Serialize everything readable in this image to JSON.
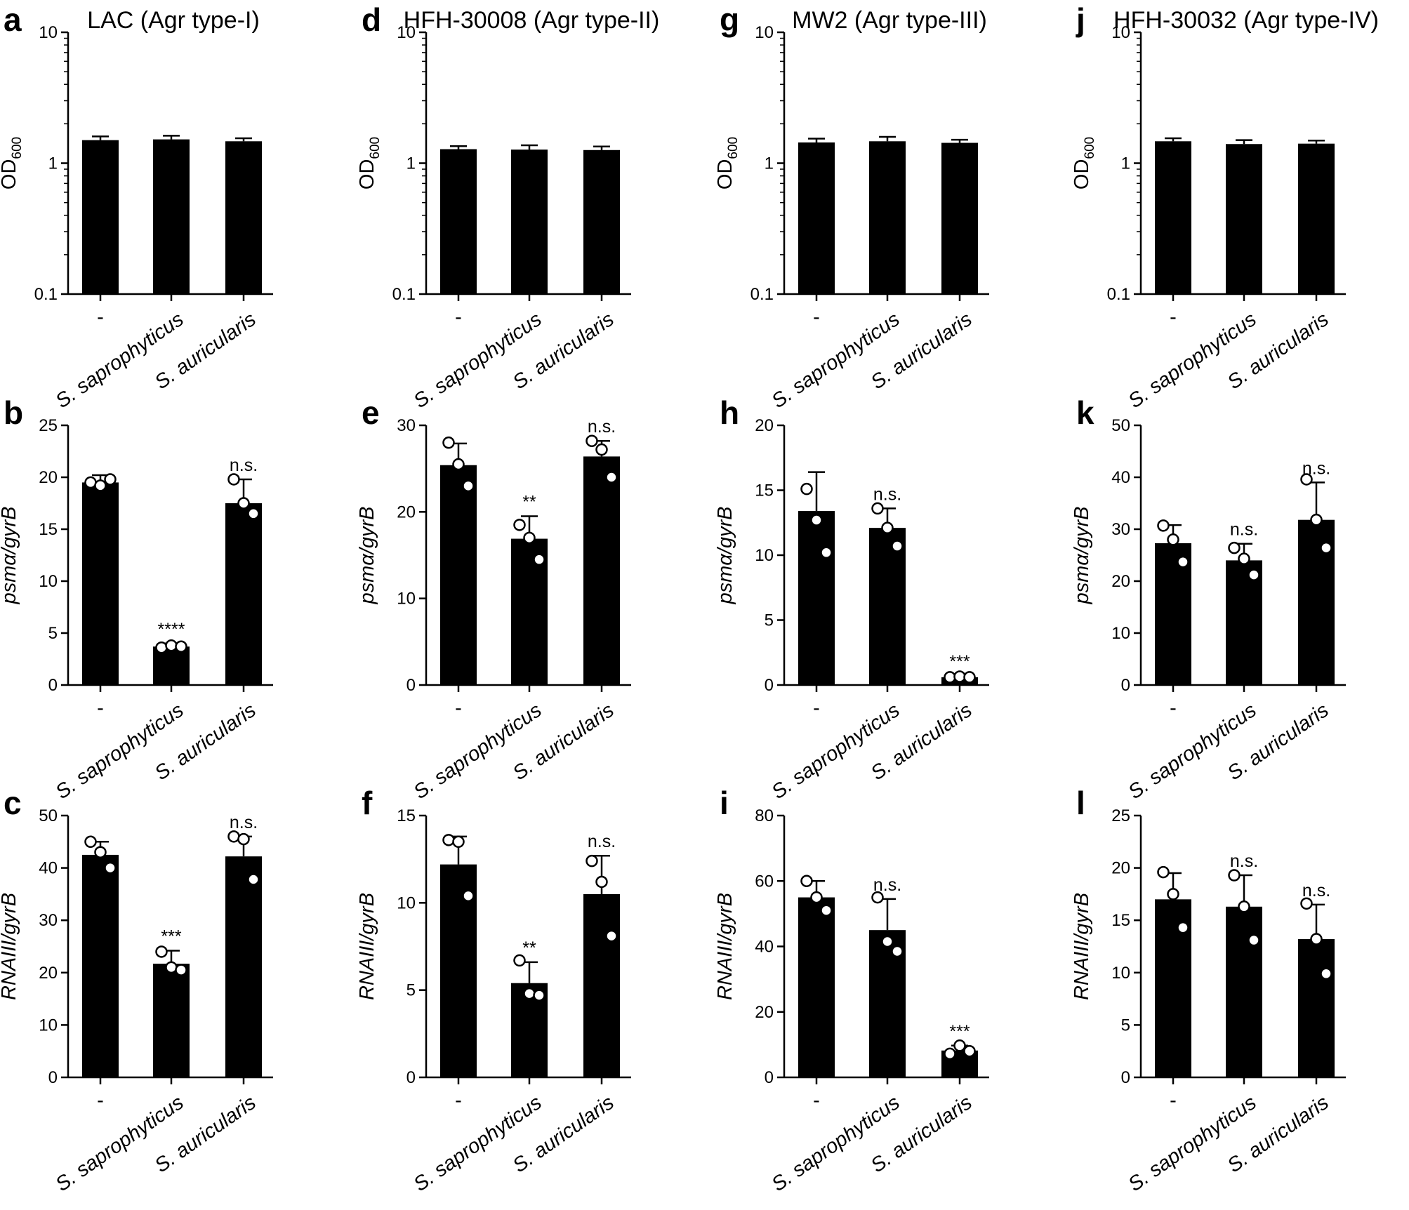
{
  "colors": {
    "bar": "#000000",
    "axis": "#000000",
    "point_fill": "#ffffff",
    "point_stroke": "#000000"
  },
  "chart_data": [
    {
      "panel": "a",
      "type": "bar",
      "title": "LAC (Agr type-I)",
      "ylabel": "OD",
      "ylabel_sub": "600",
      "scale": "log",
      "ylim": [
        0.1,
        10
      ],
      "yticks": [
        0.1,
        1,
        10
      ],
      "ytick_labels": [
        "0.1",
        "1",
        "10"
      ],
      "categories": [
        "-",
        "S. saprophyticus",
        "S. auricularis"
      ],
      "values": [
        1.5,
        1.52,
        1.47
      ],
      "errors": [
        0.1,
        0.1,
        0.08
      ],
      "points": [],
      "significance": [
        "",
        "",
        ""
      ]
    },
    {
      "panel": "b",
      "type": "bar",
      "title": "",
      "ylabel": "psmα/gyrB",
      "ylabel_sub": "",
      "scale": "linear",
      "ylim": [
        0,
        25
      ],
      "yticks": [
        0,
        5,
        10,
        15,
        20,
        25
      ],
      "ytick_labels": [
        "0",
        "5",
        "10",
        "15",
        "20",
        "25"
      ],
      "categories": [
        "-",
        "S. saprophyticus",
        "S. auricularis"
      ],
      "values": [
        19.5,
        3.7,
        17.5
      ],
      "errors": [
        0.7,
        0.3,
        2.3
      ],
      "points": [
        [
          19.5,
          19.2,
          19.8
        ],
        [
          3.6,
          3.8,
          3.7
        ],
        [
          19.8,
          17.5,
          16.5
        ]
      ],
      "significance": [
        "",
        "****",
        "n.s."
      ]
    },
    {
      "panel": "c",
      "type": "bar",
      "title": "",
      "ylabel": "RNAIII/gyrB",
      "ylabel_sub": "",
      "scale": "linear",
      "ylim": [
        0,
        50
      ],
      "yticks": [
        0,
        10,
        20,
        30,
        40,
        50
      ],
      "ytick_labels": [
        "0",
        "10",
        "20",
        "30",
        "40",
        "50"
      ],
      "categories": [
        "-",
        "S. saprophyticus",
        "S. auricularis"
      ],
      "values": [
        42.5,
        21.7,
        42.2
      ],
      "errors": [
        2.5,
        2.5,
        3.8
      ],
      "points": [
        [
          45,
          43,
          40
        ],
        [
          24,
          21,
          20.5
        ],
        [
          46,
          45.5,
          37.8
        ]
      ],
      "significance": [
        "",
        "***",
        "n.s."
      ]
    },
    {
      "panel": "d",
      "type": "bar",
      "title": "HFH-30008 (Agr type-II)",
      "ylabel": "OD",
      "ylabel_sub": "600",
      "scale": "log",
      "ylim": [
        0.1,
        10
      ],
      "yticks": [
        0.1,
        1,
        10
      ],
      "ytick_labels": [
        "0.1",
        "1",
        "10"
      ],
      "categories": [
        "-",
        "S. saprophyticus",
        "S. auricularis"
      ],
      "values": [
        1.28,
        1.27,
        1.26
      ],
      "errors": [
        0.07,
        0.1,
        0.08
      ],
      "points": [],
      "significance": [
        "",
        "",
        ""
      ]
    },
    {
      "panel": "e",
      "type": "bar",
      "title": "",
      "ylabel": "psmα/gyrB",
      "ylabel_sub": "",
      "scale": "linear",
      "ylim": [
        0,
        30
      ],
      "yticks": [
        0,
        10,
        20,
        30
      ],
      "ytick_labels": [
        "0",
        "10",
        "20",
        "30"
      ],
      "categories": [
        "-",
        "S. saprophyticus",
        "S. auricularis"
      ],
      "values": [
        25.4,
        16.9,
        26.4
      ],
      "errors": [
        2.5,
        2.6,
        1.8
      ],
      "points": [
        [
          28,
          25.5,
          23
        ],
        [
          18.5,
          17,
          14.5
        ],
        [
          28.2,
          27.2,
          24
        ]
      ],
      "significance": [
        "",
        "**",
        "n.s."
      ]
    },
    {
      "panel": "f",
      "type": "bar",
      "title": "",
      "ylabel": "RNAIII/gyrB",
      "ylabel_sub": "",
      "scale": "linear",
      "ylim": [
        0,
        15
      ],
      "yticks": [
        0,
        5,
        10,
        15
      ],
      "ytick_labels": [
        "0",
        "5",
        "10",
        "15"
      ],
      "categories": [
        "-",
        "S. saprophyticus",
        "S. auricularis"
      ],
      "values": [
        12.2,
        5.4,
        10.5
      ],
      "errors": [
        1.6,
        1.2,
        2.2
      ],
      "points": [
        [
          13.6,
          13.5,
          10.4
        ],
        [
          6.7,
          4.8,
          4.7
        ],
        [
          12.4,
          11.2,
          8.1
        ]
      ],
      "significance": [
        "",
        "**",
        "n.s."
      ]
    },
    {
      "panel": "g",
      "type": "bar",
      "title": "MW2 (Agr type-III)",
      "ylabel": "OD",
      "ylabel_sub": "600",
      "scale": "log",
      "ylim": [
        0.1,
        10
      ],
      "yticks": [
        0.1,
        1,
        10
      ],
      "ytick_labels": [
        "0.1",
        "1",
        "10"
      ],
      "categories": [
        "-",
        "S. saprophyticus",
        "S. auricularis"
      ],
      "values": [
        1.44,
        1.47,
        1.43
      ],
      "errors": [
        0.1,
        0.12,
        0.08
      ],
      "points": [],
      "significance": [
        "",
        "",
        ""
      ]
    },
    {
      "panel": "h",
      "type": "bar",
      "title": "",
      "ylabel": "psmα/gyrB",
      "ylabel_sub": "",
      "scale": "linear",
      "ylim": [
        0,
        20
      ],
      "yticks": [
        0,
        5,
        10,
        15,
        20
      ],
      "ytick_labels": [
        "0",
        "5",
        "10",
        "15",
        "20"
      ],
      "categories": [
        "-",
        "S. saprophyticus",
        "S. auricularis"
      ],
      "values": [
        13.4,
        12.1,
        0.6
      ],
      "errors": [
        3,
        1.5,
        0.1
      ],
      "points": [
        [
          15.1,
          12.7,
          10.2
        ],
        [
          13.6,
          12.1,
          10.7
        ],
        [
          0.6,
          0.65,
          0.6
        ]
      ],
      "significance": [
        "",
        "n.s.",
        "***"
      ]
    },
    {
      "panel": "i",
      "type": "bar",
      "title": "",
      "ylabel": "RNAIII/gyrB",
      "ylabel_sub": "",
      "scale": "linear",
      "ylim": [
        0,
        80
      ],
      "yticks": [
        0,
        20,
        40,
        60,
        80
      ],
      "ytick_labels": [
        "0",
        "20",
        "40",
        "60",
        "80"
      ],
      "categories": [
        "-",
        "S. saprophyticus",
        "S. auricularis"
      ],
      "values": [
        55,
        45,
        8.2
      ],
      "errors": [
        5,
        9.5,
        1.5
      ],
      "points": [
        [
          60,
          55,
          51
        ],
        [
          55,
          41.5,
          38.5
        ],
        [
          7.2,
          9.7,
          8
        ]
      ],
      "significance": [
        "",
        "n.s.",
        "***"
      ]
    },
    {
      "panel": "j",
      "type": "bar",
      "title": "HFH-30032 (Agr type-IV)",
      "ylabel": "OD",
      "ylabel_sub": "600",
      "scale": "log",
      "ylim": [
        0.1,
        10
      ],
      "yticks": [
        0.1,
        1,
        10
      ],
      "ytick_labels": [
        "0.1",
        "1",
        "10"
      ],
      "categories": [
        "-",
        "S. saprophyticus",
        "S. auricularis"
      ],
      "values": [
        1.47,
        1.4,
        1.41
      ],
      "errors": [
        0.08,
        0.1,
        0.08
      ],
      "points": [],
      "significance": [
        "",
        "",
        ""
      ]
    },
    {
      "panel": "k",
      "type": "bar",
      "title": "",
      "ylabel": "psmα/gyrB",
      "ylabel_sub": "",
      "scale": "linear",
      "ylim": [
        0,
        50
      ],
      "yticks": [
        0,
        10,
        20,
        30,
        40,
        50
      ],
      "ytick_labels": [
        "0",
        "10",
        "20",
        "30",
        "40",
        "50"
      ],
      "categories": [
        "-",
        "S. saprophyticus",
        "S. auricularis"
      ],
      "values": [
        27.3,
        24,
        31.8
      ],
      "errors": [
        3.5,
        3.2,
        7.2
      ],
      "points": [
        [
          30.7,
          28,
          23.7
        ],
        [
          26.4,
          24.3,
          21.2
        ],
        [
          39.6,
          31.8,
          26.4
        ]
      ],
      "significance": [
        "",
        "n.s.",
        "n.s."
      ]
    },
    {
      "panel": "l",
      "type": "bar",
      "title": "",
      "ylabel": "RNAIII/gyrB",
      "ylabel_sub": "",
      "scale": "linear",
      "ylim": [
        0,
        25
      ],
      "yticks": [
        0,
        5,
        10,
        15,
        20,
        25
      ],
      "ytick_labels": [
        "0",
        "5",
        "10",
        "15",
        "20",
        "25"
      ],
      "categories": [
        "-",
        "S. saprophyticus",
        "S. auricularis"
      ],
      "values": [
        17,
        16.3,
        13.2
      ],
      "errors": [
        2.5,
        3,
        3.3
      ],
      "points": [
        [
          19.6,
          17.5,
          14.3
        ],
        [
          19.3,
          16.3,
          13.1
        ],
        [
          16.6,
          13.2,
          9.9
        ]
      ],
      "significance": [
        "",
        "n.s.",
        "n.s."
      ]
    }
  ]
}
